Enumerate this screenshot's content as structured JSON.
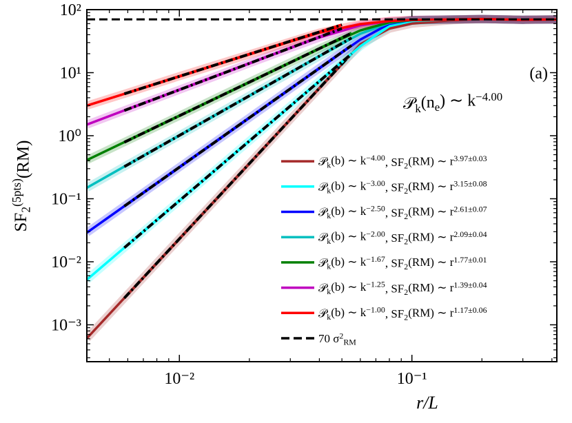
{
  "chart_data": {
    "type": "line",
    "x_label": "r/L",
    "y_label": "SF2(5pts)(RM)",
    "annotations": [
      "(a)",
      "𝒫k(ne) ∼ k−4.00"
    ],
    "log_x": true,
    "log_y": true,
    "xlim": [
      0.004,
      0.42
    ],
    "ylim": [
      0.00026,
      100
    ],
    "xticks": [
      {
        "value": 0.01,
        "label": "10⁻²"
      },
      {
        "value": 0.1,
        "label": "10⁻¹"
      }
    ],
    "yticks": [
      {
        "value": 0.001,
        "label": "10⁻³"
      },
      {
        "value": 0.01,
        "label": "10⁻²"
      },
      {
        "value": 0.1,
        "label": "10⁻¹"
      },
      {
        "value": 1,
        "label": "10⁰"
      },
      {
        "value": 10,
        "label": "10¹"
      },
      {
        "value": 100,
        "label": "10²"
      }
    ],
    "legend": "lower right",
    "x": [
      0.004,
      0.006,
      0.01,
      0.015,
      0.02,
      0.03,
      0.04,
      0.06,
      0.08,
      0.1,
      0.15,
      0.2,
      0.3,
      0.42
    ],
    "series": [
      {
        "name": "𝒫k(b) ∼ k−4.00, SF2(RM) ∼ r3.97±0.03",
        "color": "#a52a2a",
        "values": [
          0.00061,
          0.00305,
          0.0232,
          0.116,
          0.363,
          1.82,
          5.69,
          28.2,
          50,
          60,
          68,
          71,
          69,
          70
        ],
        "fit": {
          "x": [
            0.0058,
            0.055
          ],
          "values": [
            0.00265,
            20.1
          ]
        }
      },
      {
        "name": "𝒫k(b) ∼ k−3.00, SF2(RM) ∼ r3.15±0.08",
        "color": "#00ffff",
        "values": [
          0.0052,
          0.0186,
          0.0933,
          0.334,
          0.828,
          2.96,
          7.35,
          26.2,
          55,
          66,
          70,
          71,
          69,
          70
        ],
        "fit": {
          "x": [
            0.0058,
            0.055
          ],
          "values": [
            0.0167,
            20.0
          ]
        }
      },
      {
        "name": "𝒫k(b) ∼ k−2.50, SF2(RM) ∼ r2.61±0.07",
        "color": "#0000ff",
        "values": [
          0.029,
          0.0834,
          0.317,
          0.912,
          1.93,
          5.57,
          11.8,
          33.5,
          59.7,
          68.5,
          70,
          71,
          69,
          70
        ],
        "fit": {
          "x": [
            0.0058,
            0.055
          ],
          "values": [
            0.0762,
            27.0
          ]
        }
      },
      {
        "name": "𝒫k(b) ∼ k−2.00, SF2(RM) ∼ r2.09±0.04",
        "color": "#00bfbf",
        "values": [
          0.149,
          0.348,
          1.01,
          2.36,
          4.31,
          10.0,
          18.2,
          41.4,
          61.8,
          68,
          70,
          71,
          69,
          70
        ],
        "fit": {
          "x": [
            0.0058,
            0.055
          ],
          "values": [
            0.323,
            35.6
          ]
        }
      },
      {
        "name": "𝒫k(b) ∼ k−1.67, SF2(RM) ∼ r1.77±0.01",
        "color": "#008000",
        "values": [
          0.41,
          0.84,
          2.07,
          4.26,
          7.08,
          14.5,
          24.1,
          46.8,
          63,
          68,
          70,
          71,
          69,
          70
        ],
        "fit": {
          "x": [
            0.0058,
            0.055
          ],
          "values": [
            0.79,
            42.4
          ]
        }
      },
      {
        "name": "𝒫k(b) ∼ k−1.25, SF2(RM) ∼ r1.39±0.04",
        "color": "#bf00bf",
        "values": [
          1.5,
          2.64,
          5.36,
          9.4,
          14.1,
          24.6,
          36.1,
          56.4,
          65.9,
          68.6,
          70,
          71,
          69,
          70
        ],
        "fit": {
          "x": [
            0.0058,
            0.05
          ],
          "values": [
            2.51,
            50.2
          ]
        }
      },
      {
        "name": "𝒫k(b) ∼ k−1.00, SF2(RM) ∼ r1.17±0.06",
        "color": "#ff0000",
        "values": [
          3.0,
          4.8,
          8.8,
          14.0,
          19.5,
          31,
          43,
          59,
          66,
          68.6,
          70,
          71,
          69,
          70
        ],
        "fit": {
          "x": [
            0.0058,
            0.05
          ],
          "values": [
            4.62,
            57.5
          ]
        }
      }
    ],
    "reference_line": {
      "name": "70 σ2RM",
      "value": 70,
      "color": "#000000"
    }
  }
}
